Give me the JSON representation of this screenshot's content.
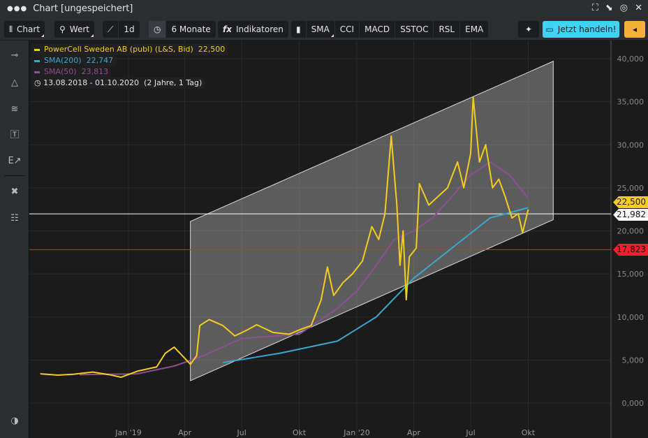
{
  "window": {
    "title": "Chart [ungespeichert]",
    "icons": [
      "fullscreen-icon",
      "popout-icon",
      "target-icon",
      "close-icon"
    ]
  },
  "toolbar": {
    "chart": "Chart",
    "wert": "Wert",
    "interval": "1d",
    "range": "6 Monate",
    "indicators": "Indikatoren",
    "quick": [
      "SMA",
      "CCI",
      "MACD",
      "SSTOC",
      "RSL",
      "EMA"
    ],
    "trade": "Jetzt handeln!"
  },
  "colors": {
    "price": "#f5cd1c",
    "sma200": "#3aa7cf",
    "sma50": "#8c4f8f",
    "support": "#ff1a2e",
    "accent": "#40d3f5",
    "orange": "#f5b13c"
  },
  "legend": {
    "price": "PowerCell Sweden AB (publ) (L&S, Bid)",
    "price_val": "22,500",
    "sma200": "SMA(200)",
    "sma200_val": "22,747",
    "sma50": "SMA(50)",
    "sma50_val": "23,813",
    "range": "13.08.2018 - 01.10.2020",
    "range_note": "(2 Jahre, 1 Tag)"
  },
  "tags": {
    "price": "22,500",
    "white_line": "21,982",
    "red_line": "17,823"
  },
  "chart_data": {
    "type": "line",
    "ylim": [
      -4000,
      42000
    ],
    "yticks": [
      "0,000",
      "5,000",
      "10,000",
      "15,000",
      "20,000",
      "25,000",
      "30,000",
      "35,000",
      "40,000"
    ],
    "xticks": [
      {
        "label": "Jan '19",
        "date": "2019-01-01"
      },
      {
        "label": "Apr",
        "date": "2019-04-01"
      },
      {
        "label": "Jul",
        "date": "2019-07-01"
      },
      {
        "label": "Okt",
        "date": "2019-10-01"
      },
      {
        "label": "Jan '20",
        "date": "2020-01-01"
      },
      {
        "label": "Apr",
        "date": "2020-04-01"
      },
      {
        "label": "Jul",
        "date": "2020-07-01"
      },
      {
        "label": "Okt",
        "date": "2020-10-01"
      }
    ],
    "hlines": [
      {
        "value": 21982,
        "color": "#ffffff"
      },
      {
        "value": 17823,
        "color": "#ff1a2e"
      }
    ],
    "channel": [
      [
        "2019-04-10",
        21100
      ],
      [
        "2020-11-10",
        39700
      ],
      [
        "2020-11-10",
        21300
      ],
      [
        "2019-04-10",
        2600
      ]
    ],
    "series": [
      {
        "name": "PowerCell Sweden AB (publ) (L&S, Bid)",
        "color": "#f5cd1c",
        "points": [
          [
            "2018-08-13",
            3400
          ],
          [
            "2018-09-10",
            3250
          ],
          [
            "2018-10-05",
            3350
          ],
          [
            "2018-11-05",
            3600
          ],
          [
            "2018-12-01",
            3300
          ],
          [
            "2018-12-20",
            3000
          ],
          [
            "2019-01-15",
            3700
          ],
          [
            "2019-02-15",
            4200
          ],
          [
            "2019-03-01",
            5800
          ],
          [
            "2019-03-15",
            6500
          ],
          [
            "2019-04-01",
            5200
          ],
          [
            "2019-04-10",
            4500
          ],
          [
            "2019-04-20",
            5500
          ],
          [
            "2019-04-25",
            9000
          ],
          [
            "2019-05-10",
            9700
          ],
          [
            "2019-06-01",
            9000
          ],
          [
            "2019-06-20",
            7800
          ],
          [
            "2019-07-10",
            8500
          ],
          [
            "2019-07-25",
            9100
          ],
          [
            "2019-08-20",
            8200
          ],
          [
            "2019-09-15",
            8000
          ],
          [
            "2019-10-01",
            8500
          ],
          [
            "2019-10-20",
            9000
          ],
          [
            "2019-11-05",
            12000
          ],
          [
            "2019-11-15",
            15800
          ],
          [
            "2019-11-25",
            12500
          ],
          [
            "2019-12-10",
            14000
          ],
          [
            "2019-12-25",
            15000
          ],
          [
            "2020-01-10",
            16500
          ],
          [
            "2020-01-25",
            20500
          ],
          [
            "2020-02-05",
            19000
          ],
          [
            "2020-02-15",
            22000
          ],
          [
            "2020-02-25",
            31000
          ],
          [
            "2020-03-05",
            23000
          ],
          [
            "2020-03-10",
            16000
          ],
          [
            "2020-03-15",
            20000
          ],
          [
            "2020-03-20",
            12000
          ],
          [
            "2020-03-25",
            17000
          ],
          [
            "2020-04-05",
            18000
          ],
          [
            "2020-04-10",
            25500
          ],
          [
            "2020-04-25",
            23000
          ],
          [
            "2020-05-10",
            24000
          ],
          [
            "2020-05-25",
            25000
          ],
          [
            "2020-06-10",
            28000
          ],
          [
            "2020-06-20",
            25000
          ],
          [
            "2020-07-01",
            29000
          ],
          [
            "2020-07-05",
            35500
          ],
          [
            "2020-07-15",
            28000
          ],
          [
            "2020-07-25",
            30000
          ],
          [
            "2020-08-05",
            25000
          ],
          [
            "2020-08-15",
            26000
          ],
          [
            "2020-08-25",
            24000
          ],
          [
            "2020-09-05",
            21500
          ],
          [
            "2020-09-15",
            22000
          ],
          [
            "2020-09-22",
            19800
          ],
          [
            "2020-10-01",
            22500
          ]
        ]
      },
      {
        "name": "SMA(200)",
        "color": "#3aa7cf",
        "points": [
          [
            "2019-06-01",
            4700
          ],
          [
            "2019-09-01",
            5800
          ],
          [
            "2019-12-01",
            7200
          ],
          [
            "2020-02-01",
            10000
          ],
          [
            "2020-04-01",
            14500
          ],
          [
            "2020-06-01",
            18000
          ],
          [
            "2020-08-01",
            21500
          ],
          [
            "2020-10-01",
            22700
          ]
        ]
      },
      {
        "name": "SMA(50)",
        "color": "#8c4f8f",
        "points": [
          [
            "2018-10-15",
            3300
          ],
          [
            "2019-01-15",
            3400
          ],
          [
            "2019-03-15",
            4300
          ],
          [
            "2019-05-01",
            5500
          ],
          [
            "2019-07-01",
            7500
          ],
          [
            "2019-10-01",
            8000
          ],
          [
            "2019-12-01",
            11000
          ],
          [
            "2020-01-01",
            13000
          ],
          [
            "2020-02-01",
            16000
          ],
          [
            "2020-03-01",
            19000
          ],
          [
            "2020-04-01",
            20000
          ],
          [
            "2020-05-01",
            21500
          ],
          [
            "2020-06-01",
            24000
          ],
          [
            "2020-07-01",
            26500
          ],
          [
            "2020-08-01",
            28000
          ],
          [
            "2020-09-01",
            26500
          ],
          [
            "2020-10-01",
            23800
          ]
        ]
      }
    ]
  }
}
